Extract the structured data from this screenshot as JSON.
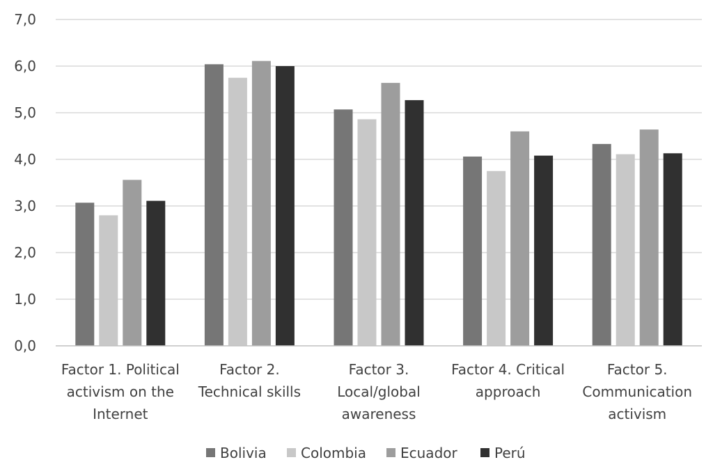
{
  "chart_data": {
    "type": "bar",
    "categories": [
      [
        "Factor 1. Political",
        "activism on the",
        "Internet"
      ],
      [
        "Factor 2.",
        "Technical skills"
      ],
      [
        "Factor 3.",
        "Local/global",
        "awareness"
      ],
      [
        "Factor 4. Critical",
        "approach"
      ],
      [
        "Factor 5.",
        "Communication",
        "activism"
      ]
    ],
    "series": [
      {
        "name": "Bolivia",
        "color": "#767676",
        "values": [
          3.07,
          6.04,
          5.07,
          4.06,
          4.33
        ]
      },
      {
        "name": "Colombia",
        "color": "#c8c8c8",
        "values": [
          2.8,
          5.75,
          4.86,
          3.75,
          4.11
        ]
      },
      {
        "name": "Ecuador",
        "color": "#9d9d9d",
        "values": [
          3.56,
          6.11,
          5.64,
          4.6,
          4.64
        ]
      },
      {
        "name": "Perú",
        "color": "#303030",
        "values": [
          3.11,
          6.0,
          5.27,
          4.08,
          4.13
        ]
      }
    ],
    "ylim": [
      0,
      7
    ],
    "yticks": [
      "0,0",
      "1,0",
      "2,0",
      "3,0",
      "4,0",
      "5,0",
      "6,0",
      "7,0"
    ],
    "grid": true,
    "legend_position": "bottom"
  }
}
